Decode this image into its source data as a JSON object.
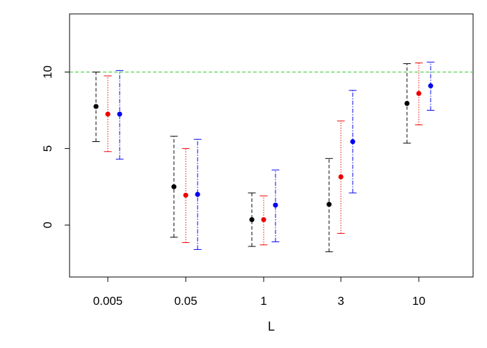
{
  "chart_data": {
    "type": "scatter",
    "title": "",
    "xlabel": "L",
    "ylabel": "",
    "categories": [
      "0.005",
      "0.05",
      "1",
      "3",
      "10"
    ],
    "ylim": [
      -3.4,
      13.8
    ],
    "yticks": [
      0,
      5,
      10
    ],
    "grid": false,
    "reference_line": {
      "y": 10,
      "color": "#33cc33",
      "style": "dashed"
    },
    "series": [
      {
        "color": "#000000",
        "dash": "5,3",
        "points": [
          {
            "y": 7.75,
            "low": 5.45,
            "high": 10.0
          },
          {
            "y": 2.5,
            "low": -0.8,
            "high": 5.8
          },
          {
            "y": 0.35,
            "low": -1.4,
            "high": 2.1
          },
          {
            "y": 1.35,
            "low": -1.75,
            "high": 4.35
          },
          {
            "y": 7.95,
            "low": 5.35,
            "high": 10.55
          }
        ]
      },
      {
        "color": "#ee0000",
        "dash": "1.5,2",
        "points": [
          {
            "y": 7.25,
            "low": 4.8,
            "high": 9.75
          },
          {
            "y": 1.95,
            "low": -1.15,
            "high": 5.0
          },
          {
            "y": 0.35,
            "low": -1.3,
            "high": 1.9
          },
          {
            "y": 3.15,
            "low": -0.55,
            "high": 6.8
          },
          {
            "y": 8.6,
            "low": 6.55,
            "high": 10.6
          }
        ]
      },
      {
        "color": "#0000ee",
        "dash": "6,2,1.5,2",
        "points": [
          {
            "y": 7.25,
            "low": 4.3,
            "high": 10.1
          },
          {
            "y": 2.0,
            "low": -1.6,
            "high": 5.6
          },
          {
            "y": 1.3,
            "low": -1.1,
            "high": 3.6
          },
          {
            "y": 5.45,
            "low": 2.1,
            "high": 8.8
          },
          {
            "y": 9.1,
            "low": 7.5,
            "high": 10.65
          }
        ]
      }
    ]
  }
}
